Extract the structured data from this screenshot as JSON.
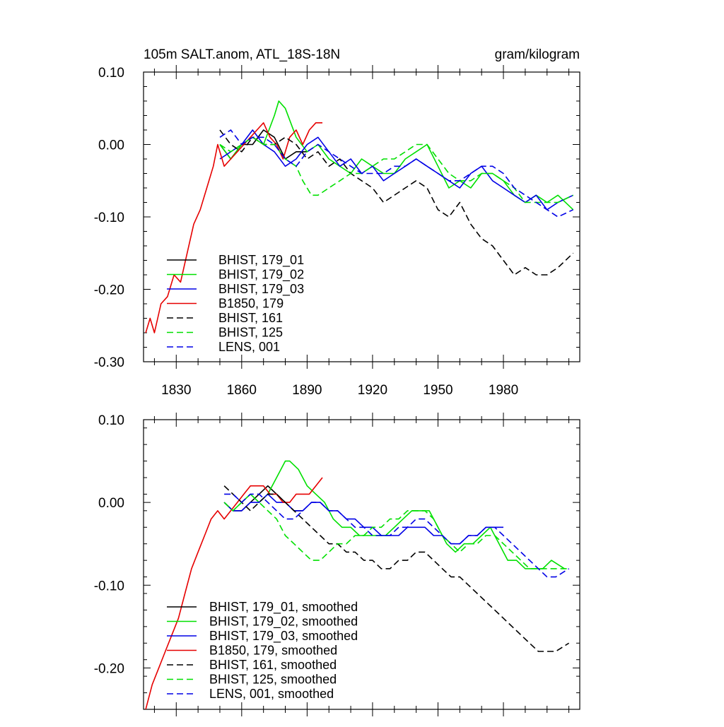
{
  "header": {
    "title": "105m SALT.anom, ATL_18S-18N",
    "units": "gram/kilogram"
  },
  "colors": {
    "black": "#000000",
    "green": "#00e000",
    "blue": "#0000e6",
    "red": "#e60000"
  },
  "chart_data": [
    {
      "type": "line",
      "title": "",
      "xlabel": "",
      "ylabel": "",
      "xlim": [
        1815,
        2015
      ],
      "ylim": [
        -0.3,
        0.1
      ],
      "x_ticks": [
        1830,
        1860,
        1890,
        1920,
        1950,
        1980
      ],
      "x_tick_labels": [
        "1830",
        "1860",
        "1890",
        "1920",
        "1950",
        "1980"
      ],
      "y_ticks": [
        0.1,
        0.0,
        -0.1,
        -0.2,
        -0.3
      ],
      "y_tick_labels": [
        "0.10",
        "0.00",
        "-0.10",
        "-0.20",
        "-0.30"
      ],
      "legend_position": "bottom-left",
      "series": [
        {
          "name": "BHIST, 179_01",
          "color": "black",
          "dash": "solid",
          "x": [
            1850,
            1855,
            1860,
            1865,
            1870,
            1875,
            1880,
            1885,
            1890
          ],
          "y": [
            0.0,
            -0.02,
            0.0,
            0.0,
            0.02,
            0.01,
            -0.02,
            -0.01,
            -0.01
          ]
        },
        {
          "name": "BHIST, 179_02",
          "color": "green",
          "dash": "solid",
          "x": [
            1850,
            1855,
            1860,
            1865,
            1870,
            1875,
            1877,
            1880,
            1885,
            1890,
            1895,
            1900,
            1905,
            1910,
            1915,
            1920,
            1925,
            1930,
            1935,
            1940,
            1945,
            1950,
            1955,
            1960,
            1965,
            1970,
            1975,
            1980,
            1985,
            1990,
            1995,
            2000,
            2005,
            2012
          ],
          "y": [
            0.0,
            -0.02,
            0.0,
            0.01,
            0.0,
            0.04,
            0.06,
            0.05,
            0.01,
            -0.01,
            0.0,
            -0.02,
            -0.03,
            -0.04,
            -0.02,
            -0.03,
            -0.04,
            -0.04,
            -0.02,
            -0.01,
            0.0,
            -0.03,
            -0.06,
            -0.05,
            -0.06,
            -0.04,
            -0.04,
            -0.05,
            -0.07,
            -0.08,
            -0.07,
            -0.08,
            -0.07,
            -0.09
          ]
        },
        {
          "name": "BHIST, 179_03",
          "color": "blue",
          "dash": "solid",
          "x": [
            1850,
            1855,
            1860,
            1865,
            1870,
            1875,
            1880,
            1885,
            1890,
            1895,
            1900,
            1905,
            1910,
            1915,
            1920,
            1925,
            1930,
            1935,
            1940,
            1945,
            1950,
            1955,
            1960,
            1965,
            1970,
            1975,
            1980,
            1985,
            1990,
            1995,
            2000,
            2005,
            2012
          ],
          "y": [
            -0.02,
            -0.01,
            0.0,
            0.02,
            0.0,
            -0.01,
            -0.03,
            -0.02,
            0.0,
            0.01,
            -0.01,
            -0.03,
            -0.02,
            -0.04,
            -0.03,
            -0.05,
            -0.04,
            -0.03,
            -0.02,
            -0.03,
            -0.04,
            -0.05,
            -0.06,
            -0.04,
            -0.03,
            -0.05,
            -0.06,
            -0.07,
            -0.08,
            -0.07,
            -0.09,
            -0.08,
            -0.07
          ]
        },
        {
          "name": "B1850, 179",
          "color": "red",
          "dash": "solid",
          "x": [
            1816,
            1818,
            1820,
            1823,
            1826,
            1829,
            1832,
            1835,
            1838,
            1841,
            1844,
            1847,
            1849,
            1852,
            1855,
            1858,
            1861,
            1864,
            1867,
            1870,
            1873,
            1876,
            1879,
            1882,
            1885,
            1888,
            1891,
            1894,
            1897
          ],
          "y": [
            -0.26,
            -0.24,
            -0.26,
            -0.22,
            -0.21,
            -0.18,
            -0.19,
            -0.15,
            -0.11,
            -0.09,
            -0.06,
            -0.03,
            0.0,
            -0.03,
            -0.02,
            -0.01,
            0.0,
            0.01,
            0.02,
            0.03,
            0.01,
            0.0,
            -0.02,
            0.01,
            0.02,
            0.0,
            0.02,
            0.03,
            0.03
          ]
        },
        {
          "name": "BHIST, 161",
          "color": "black",
          "dash": "dashed",
          "x": [
            1850,
            1855,
            1860,
            1865,
            1870,
            1875,
            1880,
            1885,
            1890,
            1895,
            1900,
            1905,
            1910,
            1915,
            1920,
            1925,
            1930,
            1935,
            1940,
            1945,
            1950,
            1955,
            1960,
            1965,
            1970,
            1975,
            1980,
            1985,
            1990,
            1995,
            2000,
            2005,
            2012
          ],
          "y": [
            0.02,
            0.0,
            -0.01,
            0.01,
            0.0,
            0.0,
            0.01,
            0.0,
            -0.02,
            -0.01,
            -0.03,
            -0.02,
            -0.04,
            -0.05,
            -0.06,
            -0.08,
            -0.07,
            -0.06,
            -0.05,
            -0.06,
            -0.09,
            -0.1,
            -0.08,
            -0.11,
            -0.13,
            -0.14,
            -0.16,
            -0.18,
            -0.17,
            -0.18,
            -0.18,
            -0.17,
            -0.15
          ]
        },
        {
          "name": "BHIST, 125",
          "color": "green",
          "dash": "dashed",
          "x": [
            1850,
            1855,
            1860,
            1865,
            1870,
            1875,
            1880,
            1885,
            1888,
            1892,
            1895,
            1900,
            1905,
            1910,
            1915,
            1920,
            1925,
            1930,
            1935,
            1940,
            1945,
            1950,
            1955,
            1960,
            1965,
            1970,
            1975,
            1980,
            1985,
            1990,
            1995,
            2000,
            2005,
            2012
          ],
          "y": [
            0.0,
            -0.01,
            0.0,
            0.01,
            0.0,
            0.0,
            -0.02,
            -0.03,
            -0.05,
            -0.07,
            -0.07,
            -0.06,
            -0.05,
            -0.04,
            -0.04,
            -0.03,
            -0.02,
            -0.02,
            -0.01,
            0.0,
            0.0,
            -0.02,
            -0.04,
            -0.05,
            -0.05,
            -0.04,
            -0.04,
            -0.05,
            -0.06,
            -0.08,
            -0.08,
            -0.08,
            -0.08,
            -0.07
          ]
        },
        {
          "name": "LENS, 001",
          "color": "blue",
          "dash": "dashed",
          "x": [
            1850,
            1855,
            1860,
            1865,
            1870,
            1875,
            1880,
            1885,
            1890,
            1895,
            1900,
            1905,
            1910,
            1915,
            1920,
            1925,
            1930,
            1935,
            1940,
            1945,
            1950,
            1955,
            1960,
            1965,
            1970,
            1975,
            1980,
            1985,
            1990,
            1995,
            2000,
            2005,
            2012
          ],
          "y": [
            0.01,
            0.02,
            0.0,
            0.01,
            0.01,
            0.0,
            -0.02,
            -0.03,
            -0.01,
            0.0,
            -0.01,
            -0.02,
            -0.03,
            -0.04,
            -0.04,
            -0.04,
            -0.03,
            -0.03,
            -0.02,
            -0.03,
            -0.04,
            -0.05,
            -0.05,
            -0.04,
            -0.03,
            -0.03,
            -0.04,
            -0.06,
            -0.07,
            -0.08,
            -0.09,
            -0.1,
            -0.09
          ]
        }
      ]
    },
    {
      "type": "line",
      "title": "",
      "xlabel": "",
      "ylabel": "",
      "xlim": [
        1815,
        2015
      ],
      "ylim": [
        -0.25,
        0.1
      ],
      "x_ticks": [
        1830,
        1860,
        1890,
        1920,
        1950,
        1980
      ],
      "x_tick_labels": [],
      "y_ticks": [
        0.1,
        0.0,
        -0.1,
        -0.2
      ],
      "y_tick_labels": [
        "0.10",
        "0.00",
        "-0.10",
        "-0.20"
      ],
      "legend_position": "bottom-left",
      "series": [
        {
          "name": "BHIST, 179_01, smoothed",
          "color": "black",
          "dash": "solid",
          "x": [
            1852,
            1856,
            1860,
            1864,
            1868,
            1872,
            1876,
            1880,
            1884,
            1888
          ],
          "y": [
            0.0,
            -0.01,
            -0.01,
            0.0,
            0.01,
            0.02,
            0.01,
            0.0,
            -0.01,
            -0.01
          ]
        },
        {
          "name": "BHIST, 179_02, smoothed",
          "color": "green",
          "dash": "solid",
          "x": [
            1852,
            1856,
            1860,
            1864,
            1868,
            1872,
            1876,
            1880,
            1882,
            1886,
            1890,
            1894,
            1898,
            1902,
            1906,
            1910,
            1914,
            1918,
            1922,
            1926,
            1930,
            1934,
            1938,
            1942,
            1946,
            1950,
            1954,
            1958,
            1962,
            1966,
            1970,
            1974,
            1978,
            1982,
            1986,
            1990,
            1994,
            1998,
            2002,
            2008
          ],
          "y": [
            0.0,
            -0.01,
            0.0,
            0.01,
            0.0,
            0.01,
            0.03,
            0.05,
            0.05,
            0.04,
            0.02,
            0.01,
            0.0,
            -0.02,
            -0.03,
            -0.03,
            -0.04,
            -0.04,
            -0.04,
            -0.04,
            -0.03,
            -0.02,
            -0.01,
            -0.01,
            -0.01,
            -0.03,
            -0.05,
            -0.06,
            -0.05,
            -0.05,
            -0.04,
            -0.03,
            -0.05,
            -0.07,
            -0.07,
            -0.08,
            -0.08,
            -0.08,
            -0.07,
            -0.08
          ]
        },
        {
          "name": "BHIST, 179_03, smoothed",
          "color": "blue",
          "dash": "solid",
          "x": [
            1852,
            1856,
            1860,
            1864,
            1868,
            1872,
            1876,
            1880,
            1884,
            1888,
            1892,
            1896,
            1900,
            1904,
            1908,
            1912,
            1916,
            1920,
            1924,
            1928,
            1932,
            1936,
            1940,
            1944,
            1948,
            1952,
            1956,
            1960,
            1964,
            1968,
            1972,
            1976,
            1980
          ],
          "y": [
            0.0,
            -0.01,
            -0.01,
            0.0,
            0.0,
            0.01,
            0.0,
            0.0,
            -0.01,
            -0.01,
            0.0,
            0.0,
            -0.01,
            -0.01,
            -0.02,
            -0.02,
            -0.03,
            -0.03,
            -0.04,
            -0.04,
            -0.04,
            -0.03,
            -0.03,
            -0.03,
            -0.04,
            -0.04,
            -0.05,
            -0.05,
            -0.04,
            -0.04,
            -0.03,
            -0.03,
            -0.03
          ]
        },
        {
          "name": "B1850, 179, smoothed",
          "color": "red",
          "dash": "solid",
          "x": [
            1816,
            1819,
            1822,
            1825,
            1828,
            1831,
            1834,
            1837,
            1840,
            1843,
            1846,
            1849,
            1852,
            1855,
            1858,
            1861,
            1864,
            1867,
            1870,
            1873,
            1876,
            1879,
            1882,
            1885,
            1888,
            1891,
            1894,
            1897
          ],
          "y": [
            -0.25,
            -0.22,
            -0.2,
            -0.18,
            -0.16,
            -0.14,
            -0.11,
            -0.08,
            -0.06,
            -0.04,
            -0.02,
            -0.01,
            -0.02,
            -0.01,
            0.0,
            0.01,
            0.02,
            0.02,
            0.02,
            0.01,
            0.01,
            0.0,
            0.0,
            0.01,
            0.01,
            0.01,
            0.02,
            0.03
          ]
        },
        {
          "name": "BHIST, 161, smoothed",
          "color": "black",
          "dash": "dashed",
          "x": [
            1852,
            1856,
            1860,
            1864,
            1868,
            1872,
            1876,
            1880,
            1884,
            1888,
            1892,
            1896,
            1900,
            1904,
            1908,
            1912,
            1916,
            1920,
            1924,
            1928,
            1932,
            1936,
            1940,
            1944,
            1948,
            1952,
            1956,
            1960,
            1964,
            1968,
            1972,
            1976,
            1980,
            1984,
            1988,
            1992,
            1996,
            2000,
            2004,
            2010
          ],
          "y": [
            0.02,
            0.01,
            0.0,
            -0.01,
            0.0,
            0.01,
            0.01,
            0.0,
            -0.01,
            -0.02,
            -0.03,
            -0.04,
            -0.05,
            -0.05,
            -0.06,
            -0.06,
            -0.07,
            -0.07,
            -0.08,
            -0.08,
            -0.07,
            -0.07,
            -0.06,
            -0.06,
            -0.07,
            -0.08,
            -0.09,
            -0.09,
            -0.1,
            -0.11,
            -0.12,
            -0.13,
            -0.14,
            -0.15,
            -0.16,
            -0.17,
            -0.18,
            -0.18,
            -0.18,
            -0.17
          ]
        },
        {
          "name": "BHIST, 125, smoothed",
          "color": "green",
          "dash": "dashed",
          "x": [
            1852,
            1856,
            1860,
            1864,
            1868,
            1872,
            1876,
            1880,
            1884,
            1888,
            1892,
            1896,
            1900,
            1904,
            1908,
            1912,
            1916,
            1920,
            1924,
            1928,
            1932,
            1936,
            1940,
            1944,
            1948,
            1952,
            1956,
            1960,
            1964,
            1968,
            1972,
            1976,
            1980,
            1984,
            1988,
            1992,
            1996,
            2000,
            2004,
            2010
          ],
          "y": [
            0.0,
            -0.01,
            0.0,
            0.01,
            0.0,
            -0.01,
            -0.02,
            -0.04,
            -0.05,
            -0.06,
            -0.07,
            -0.07,
            -0.06,
            -0.05,
            -0.05,
            -0.04,
            -0.04,
            -0.03,
            -0.03,
            -0.02,
            -0.02,
            -0.01,
            -0.01,
            -0.01,
            -0.02,
            -0.04,
            -0.05,
            -0.06,
            -0.05,
            -0.05,
            -0.04,
            -0.04,
            -0.05,
            -0.06,
            -0.07,
            -0.08,
            -0.08,
            -0.08,
            -0.08,
            -0.08
          ]
        },
        {
          "name": "LENS, 001, smoothed",
          "color": "blue",
          "dash": "dashed",
          "x": [
            1852,
            1856,
            1860,
            1864,
            1868,
            1872,
            1876,
            1880,
            1884,
            1888,
            1892,
            1896,
            1900,
            1904,
            1908,
            1912,
            1916,
            1920,
            1924,
            1928,
            1932,
            1936,
            1940,
            1944,
            1948,
            1952,
            1956,
            1960,
            1964,
            1968,
            1972,
            1976,
            1980,
            1984,
            1988,
            1992,
            1996,
            2000,
            2004,
            2010
          ],
          "y": [
            0.01,
            0.01,
            0.0,
            0.01,
            0.01,
            0.0,
            -0.01,
            -0.02,
            -0.02,
            -0.01,
            0.0,
            0.0,
            -0.01,
            -0.01,
            -0.02,
            -0.03,
            -0.03,
            -0.04,
            -0.04,
            -0.04,
            -0.03,
            -0.03,
            -0.02,
            -0.02,
            -0.03,
            -0.04,
            -0.05,
            -0.05,
            -0.04,
            -0.04,
            -0.03,
            -0.03,
            -0.04,
            -0.05,
            -0.06,
            -0.07,
            -0.08,
            -0.09,
            -0.09,
            -0.08
          ]
        }
      ]
    }
  ]
}
